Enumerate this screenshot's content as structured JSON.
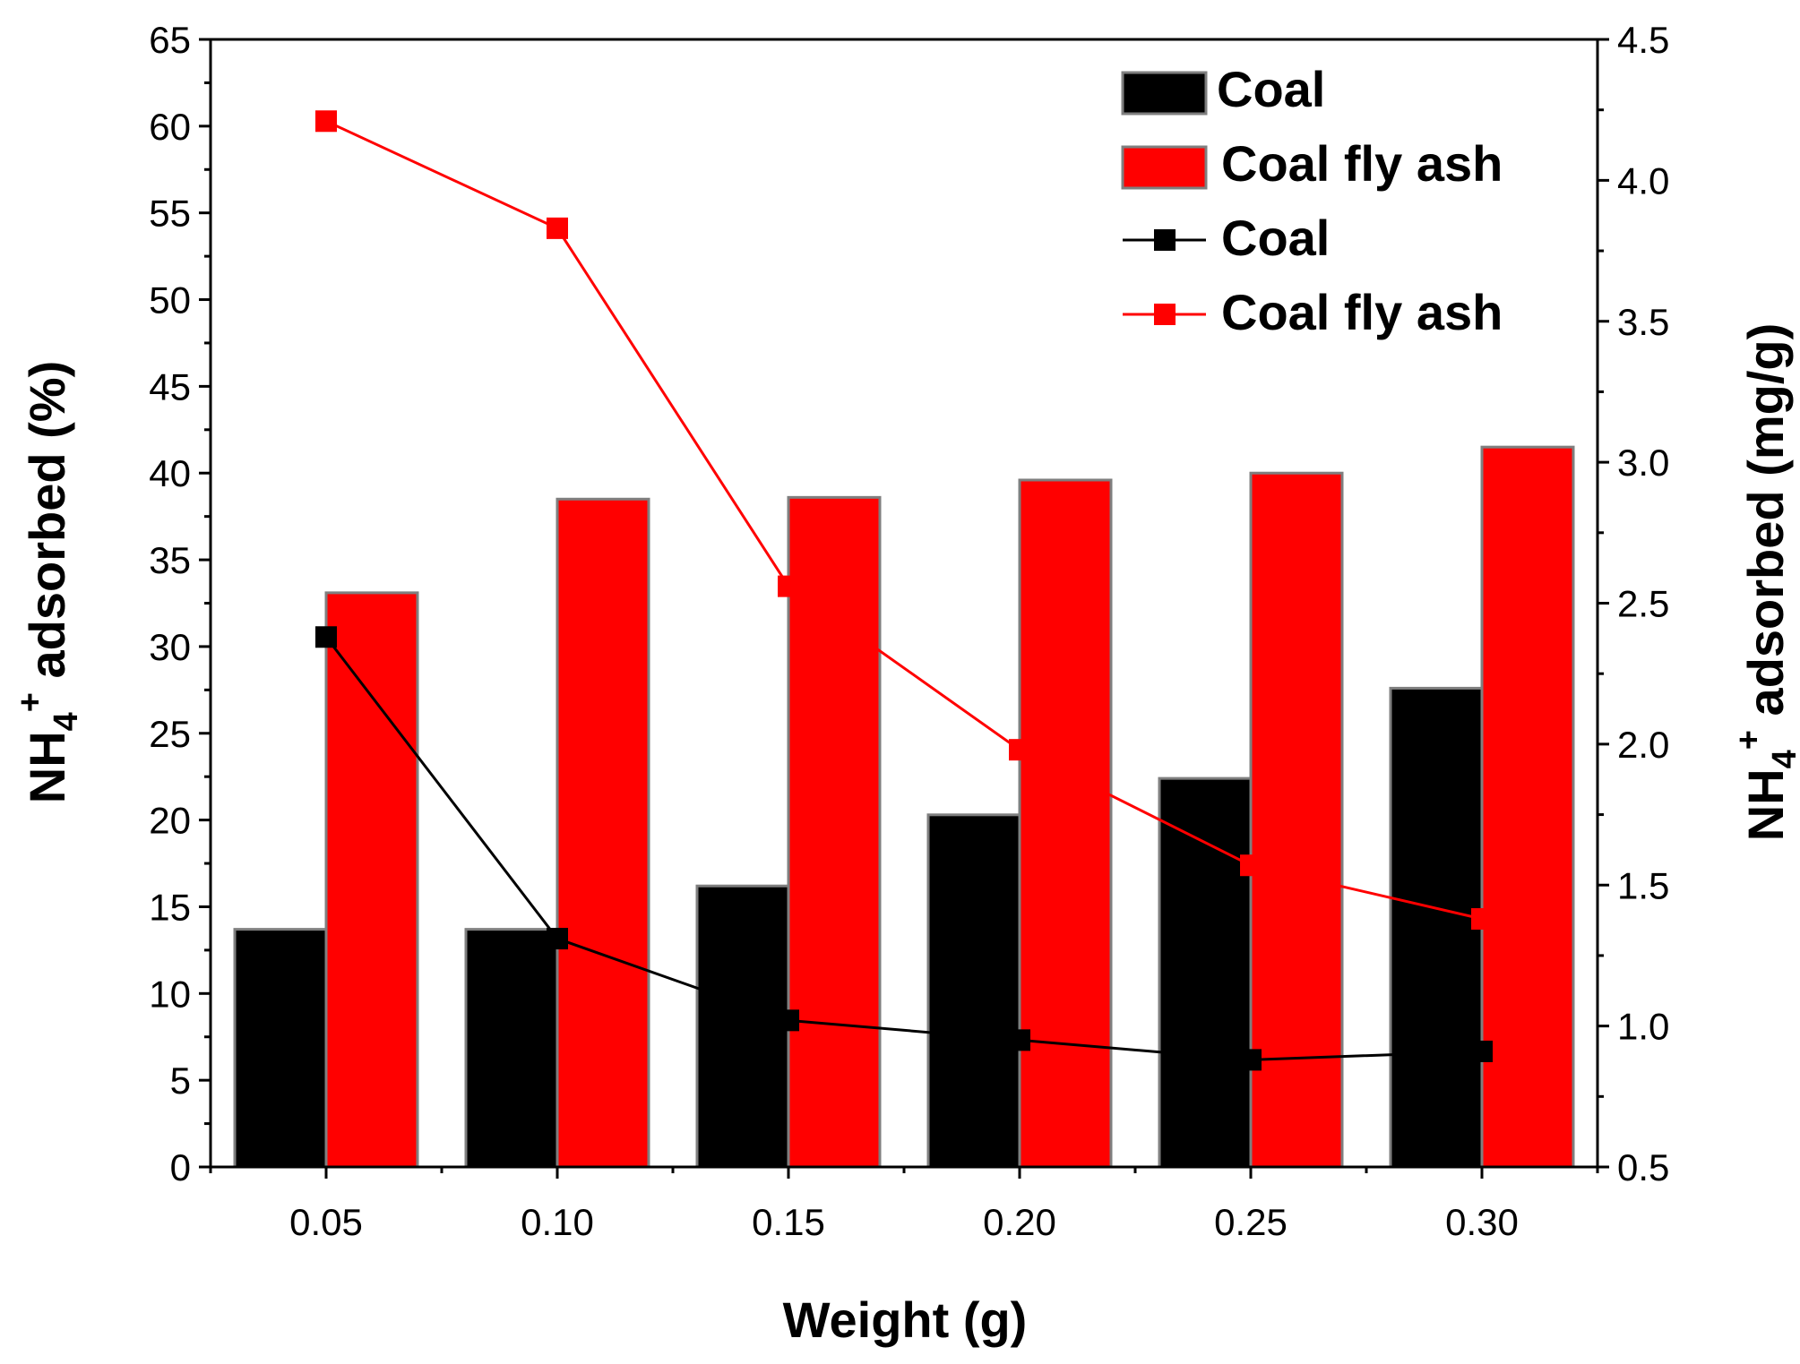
{
  "chart_data": {
    "type": "bar+line",
    "xlabel": "Weight (g)",
    "ylabel_left": {
      "prefix": "NH",
      "sub": "4",
      "sup": "+",
      "suffix": " adsorbed (%)"
    },
    "ylabel_right": {
      "prefix": "NH",
      "sub": "4",
      "sup": "+",
      "suffix": " adsorbed (mg/g)"
    },
    "categories": [
      "0.05",
      "0.10",
      "0.15",
      "0.20",
      "0.25",
      "0.30"
    ],
    "x_values": [
      0.05,
      0.1,
      0.15,
      0.2,
      0.25,
      0.3
    ],
    "xlim": [
      0.025,
      0.325
    ],
    "ylim_left": [
      0,
      65
    ],
    "ylim_right": [
      0.5,
      4.5
    ],
    "left_ticks": [
      "0",
      "5",
      "10",
      "15",
      "20",
      "25",
      "30",
      "35",
      "40",
      "45",
      "50",
      "55",
      "60",
      "65"
    ],
    "right_ticks": [
      "0.5",
      "1.0",
      "1.5",
      "2.0",
      "2.5",
      "3.0",
      "3.5",
      "4.0",
      "4.5"
    ],
    "bar_series": [
      {
        "name": "Coal",
        "color": "#000000",
        "axis": "left",
        "values": [
          13.7,
          13.7,
          16.2,
          20.3,
          22.4,
          27.6
        ]
      },
      {
        "name": "Coal fly ash",
        "color": "#ff0000",
        "axis": "left",
        "values": [
          33.1,
          38.5,
          38.6,
          39.6,
          40.0,
          41.5
        ]
      }
    ],
    "line_series": [
      {
        "name": "Coal",
        "color": "#000000",
        "axis": "right",
        "marker": "square",
        "values": [
          2.38,
          1.31,
          1.02,
          0.95,
          0.88,
          0.91
        ]
      },
      {
        "name": "Coal fly ash",
        "color": "#ff0000",
        "axis": "right",
        "marker": "square",
        "values": [
          4.21,
          3.83,
          2.56,
          1.98,
          1.57,
          1.38
        ]
      }
    ],
    "legend": {
      "position": "top-right",
      "entries": [
        {
          "label": "Coal",
          "kind": "bar",
          "color": "#000000"
        },
        {
          "label": "Coal fly ash",
          "kind": "bar",
          "color": "#ff0000"
        },
        {
          "label": "Coal",
          "kind": "line",
          "color": "#000000"
        },
        {
          "label": "Coal fly ash",
          "kind": "line",
          "color": "#ff0000"
        }
      ]
    }
  }
}
